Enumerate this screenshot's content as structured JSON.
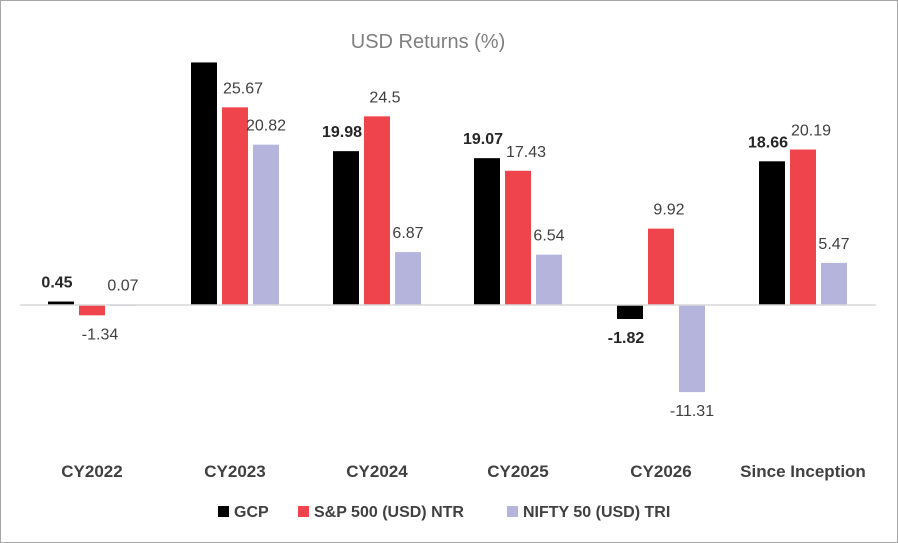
{
  "chart_data": {
    "type": "bar",
    "title": "USD Returns (%)",
    "xlabel": "",
    "ylabel": "",
    "categories": [
      "CY2022",
      "CY2023",
      "CY2024",
      "CY2025",
      "CY2026",
      "Since Inception"
    ],
    "series": [
      {
        "name": "GCP",
        "color": "#000000",
        "values": [
          0.45,
          31.5,
          19.98,
          19.07,
          -1.82,
          18.66
        ],
        "labels": [
          "0.45",
          "",
          "19.98",
          "19.07",
          "-1.82",
          "18.66"
        ],
        "bold_labels": true
      },
      {
        "name": "S&P 500 (USD) NTR",
        "color": "#f0444c",
        "values": [
          -1.34,
          25.67,
          24.5,
          17.43,
          9.92,
          20.19
        ],
        "labels": [
          "-1.34",
          "25.67",
          "24.5",
          "17.43",
          "9.92",
          "20.19"
        ],
        "bold_labels": false
      },
      {
        "name": "NIFTY 50 (USD) TRI",
        "color": "#b4b4dc",
        "values": [
          0.07,
          20.82,
          6.87,
          6.54,
          -11.31,
          5.47
        ],
        "labels": [
          "0.07",
          "20.82",
          "6.87",
          "6.54",
          "-11.31",
          "5.47"
        ],
        "bold_labels": false
      }
    ],
    "ylim": [
      -15,
      35
    ],
    "grid": false,
    "legend": "bottom"
  }
}
